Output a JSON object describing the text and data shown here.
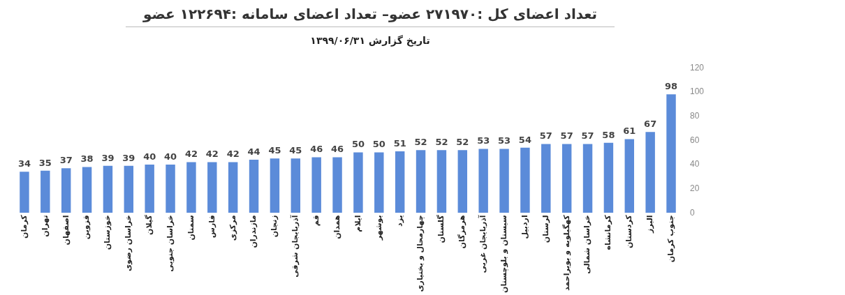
{
  "chart_data": {
    "type": "bar",
    "title": "تعداد اعضای کل :۲۷۱۹۷۰ عضو– تعداد اعضای سامانه :۱۲۲۶۹۴ عضو",
    "subtitle": "تاریخ گزارش ۱۳۹۹/۰۶/۳۱",
    "categories": [
      "کرمان",
      "تهران",
      "اصفهان",
      "قزوین",
      "خوزستان",
      "خراسان رضوی",
      "گیلان",
      "خراسان جنوبی",
      "سمنان",
      "فارس",
      "مرکزی",
      "مازندران",
      "زنجان",
      "آذربایجان شرقی",
      "قم",
      "همدان",
      "ایلام",
      "بوشهر",
      "یزد",
      "چهارمحال و بختیاری",
      "گلستان",
      "هرمزگان",
      "آذربایجان غربی",
      "سیستان و بلوچستان",
      "اردبیل",
      "لرستان",
      "کهگیلویه و بویراحمد",
      "خراسان شمالی",
      "کرمانشاه",
      "کردستان",
      "البرز",
      "جنوب کرمان"
    ],
    "values": [
      34,
      35,
      37,
      38,
      39,
      39,
      40,
      40,
      42,
      42,
      42,
      44,
      45,
      45,
      46,
      46,
      50,
      50,
      51,
      52,
      52,
      52,
      53,
      53,
      54,
      57,
      57,
      57,
      58,
      61,
      67,
      98
    ],
    "color": "#5b8bd9",
    "ylim": [
      0,
      120
    ],
    "yticks": [
      0,
      20,
      40,
      60,
      80,
      100,
      120
    ],
    "grid": false,
    "data_labels": true
  }
}
